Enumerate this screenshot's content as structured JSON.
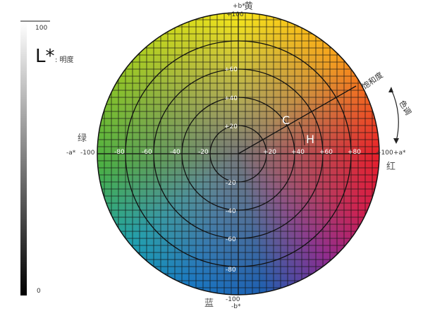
{
  "lightness": {
    "symbol": "L*",
    "label": ": 明度",
    "top": "100",
    "bottom": "0"
  },
  "axes": {
    "b_plus": "+b*",
    "b_plus_value": "+100",
    "b_plus_color": "黄",
    "b_minus": "-b*",
    "b_minus_value": "-100",
    "b_minus_color": "蓝",
    "a_minus": "-a*",
    "a_minus_value": "-100",
    "a_minus_color": "绿",
    "a_plus": "+a*",
    "a_plus_value": "+100",
    "a_plus_color": "红"
  },
  "a_ticks": [
    "-80",
    "-60",
    "-40",
    "-20",
    "+20",
    "+40",
    "+60",
    "+80"
  ],
  "b_ticks": [
    "+60",
    "+40",
    "+20",
    "-20",
    "-40",
    "-60",
    "-80"
  ],
  "chroma_label": "C",
  "hue_label": "H",
  "saturation": "饱和度",
  "hue": "色调",
  "colors": {
    "yellow": "#f6e61a",
    "red": "#e8202a",
    "blue": "#1a78c2",
    "green": "#4bb043"
  }
}
